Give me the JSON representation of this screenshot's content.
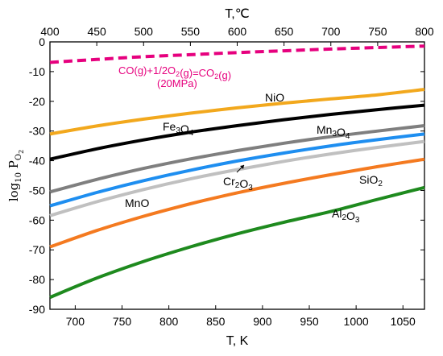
{
  "chart_data": {
    "type": "line",
    "xlabel": "T, K",
    "x2label": "T,℃",
    "ylabel": "log10 PO2",
    "xlim": [
      673,
      1073
    ],
    "x2lim": [
      400,
      800
    ],
    "ylim": [
      -90,
      0
    ],
    "x_ticks": [
      700,
      750,
      800,
      850,
      900,
      950,
      1000,
      1050
    ],
    "x2_ticks": [
      400,
      450,
      500,
      550,
      600,
      650,
      700,
      750,
      800
    ],
    "y_ticks": [
      0,
      -10,
      -20,
      -30,
      -40,
      -50,
      -60,
      -70,
      -80,
      -90
    ],
    "grid": false,
    "series": [
      {
        "name": "CO(g)+1/2O2(g)=CO2(g) (20MPa)",
        "color": "#e6007e",
        "dash": true,
        "x": [
          673,
          723,
          773,
          823,
          873,
          923,
          973,
          1023,
          1073
        ],
        "y": [
          -6.9,
          -5.9,
          -5.0,
          -4.3,
          -3.6,
          -3.0,
          -2.4,
          -1.9,
          -1.4
        ]
      },
      {
        "name": "NiO",
        "color": "#f2a81d",
        "x": [
          673,
          723,
          773,
          823,
          873,
          923,
          973,
          1023,
          1073
        ],
        "y": [
          -31.0,
          -28.3,
          -26.0,
          -24.0,
          -22.2,
          -20.6,
          -19.2,
          -17.8,
          -16.0
        ]
      },
      {
        "name": "Fe3O4",
        "color": "#000000",
        "x": [
          673,
          723,
          773,
          823,
          873,
          923,
          973,
          1023,
          1073
        ],
        "y": [
          -39.5,
          -36.0,
          -33.0,
          -30.4,
          -28.2,
          -26.2,
          -24.4,
          -22.8,
          -21.3
        ]
      },
      {
        "name": "Mn3O4",
        "color": "#7f7f7f",
        "x": [
          673,
          723,
          773,
          823,
          873,
          923,
          973,
          1023,
          1073
        ],
        "y": [
          -50.5,
          -46.3,
          -42.6,
          -39.4,
          -36.6,
          -34.1,
          -31.9,
          -30.0,
          -28.2
        ]
      },
      {
        "name": "MnO",
        "color": "#1e8ef0",
        "x": [
          673,
          723,
          773,
          823,
          873,
          923,
          973,
          1023,
          1073
        ],
        "y": [
          -55.2,
          -50.7,
          -46.7,
          -43.2,
          -40.1,
          -37.4,
          -35.0,
          -32.9,
          -31.0
        ]
      },
      {
        "name": "Cr2O3",
        "color": "#c0c0c0",
        "x": [
          673,
          723,
          773,
          823,
          873,
          923,
          973,
          1023,
          1073
        ],
        "y": [
          -58.5,
          -53.8,
          -49.7,
          -46.1,
          -43.0,
          -40.2,
          -37.7,
          -35.5,
          -33.5
        ]
      },
      {
        "name": "SiO2",
        "color": "#f47a20",
        "x": [
          673,
          723,
          773,
          823,
          873,
          923,
          973,
          1023,
          1073
        ],
        "y": [
          -69.0,
          -63.5,
          -58.7,
          -54.5,
          -50.8,
          -47.6,
          -44.7,
          -42.0,
          -39.5
        ]
      },
      {
        "name": "Al2O3",
        "color": "#1e8a1e",
        "x": [
          673,
          723,
          773,
          823,
          873,
          923,
          973,
          1023,
          1073
        ],
        "y": [
          -86.0,
          -79.5,
          -73.9,
          -69.0,
          -64.6,
          -60.7,
          -57.1,
          -53.0,
          -49.0
        ]
      }
    ],
    "annotations": {
      "reaction_line1": "CO(g)+1/2O2(g)=CO2(g)",
      "reaction_line2": "(20MPa)",
      "NiO": "NiO",
      "Fe3O4": "Fe3O4",
      "Mn3O4": "Mn3O4",
      "Cr2O3": "Cr2O3",
      "MnO": "MnO",
      "SiO2": "SiO2",
      "Al2O3": "Al2O3"
    }
  }
}
